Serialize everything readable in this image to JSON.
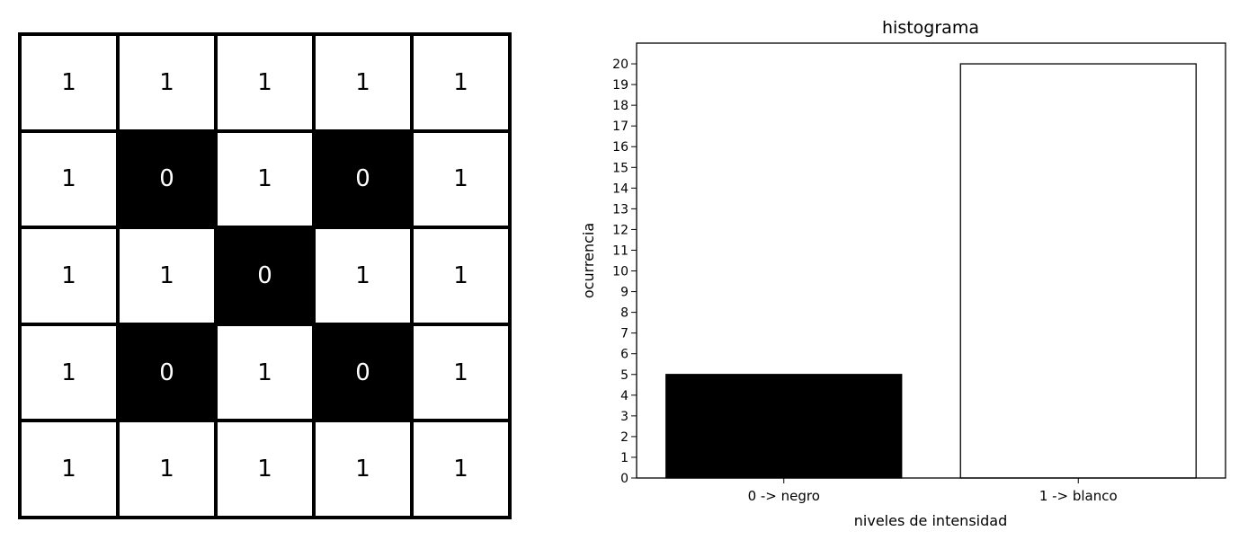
{
  "matrix": {
    "rows": [
      [
        1,
        1,
        1,
        1,
        1
      ],
      [
        1,
        0,
        1,
        0,
        1
      ],
      [
        1,
        1,
        0,
        1,
        1
      ],
      [
        1,
        0,
        1,
        0,
        1
      ],
      [
        1,
        1,
        1,
        1,
        1
      ]
    ]
  },
  "chart_data": {
    "type": "bar",
    "title": "histograma",
    "xlabel": "niveles de intensidad",
    "ylabel": "ocurrencia",
    "categories": [
      "0 -> negro",
      "1 -> blanco"
    ],
    "values": [
      5,
      20
    ],
    "bar_colors": [
      "#000000",
      "#ffffff"
    ],
    "ylim": [
      0,
      21
    ],
    "yticks": [
      0,
      1,
      2,
      3,
      4,
      5,
      6,
      7,
      8,
      9,
      10,
      11,
      12,
      13,
      14,
      15,
      16,
      17,
      18,
      19,
      20
    ],
    "grid": false
  }
}
